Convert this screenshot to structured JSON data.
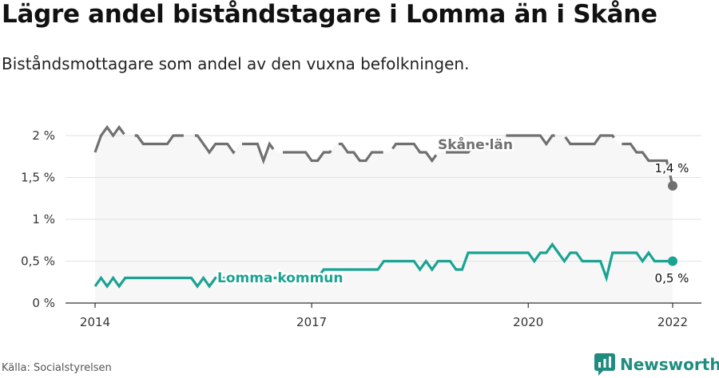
{
  "header": {
    "title": "Lägre andel biståndstagare i Lomma än i Skåne",
    "subtitle": "Biståndsmottagare som andel av den vuxna befolkningen."
  },
  "footer": {
    "source": "Källa: Socialstyrelsen",
    "brand": "Newsworthy"
  },
  "colors": {
    "skane": "#707070",
    "lomma": "#1aa392",
    "area": "#f7f7f7",
    "grid": "#e2e2e2",
    "axis": "#333333",
    "brand": "#1f8c80"
  },
  "chart_data": {
    "type": "line",
    "xlim": [
      2014,
      2022
    ],
    "ylim": [
      0,
      2
    ],
    "yticks": [
      {
        "value": 0,
        "label": "0 %"
      },
      {
        "value": 0.5,
        "label": "0,5 %"
      },
      {
        "value": 1,
        "label": "1 %"
      },
      {
        "value": 1.5,
        "label": "1,5 %"
      },
      {
        "value": 2,
        "label": "2 %"
      }
    ],
    "xticks": [
      {
        "value": 2014,
        "label": "2014"
      },
      {
        "value": 2017,
        "label": "2017"
      },
      {
        "value": 2020,
        "label": "2020"
      },
      {
        "value": 2022,
        "label": "2022"
      }
    ],
    "grid": true,
    "series": [
      {
        "name": "Skåne län",
        "color": "#707070",
        "end_label": "1,4 %",
        "x": [
          2014.0,
          2014.083,
          2014.167,
          2014.25,
          2014.333,
          2014.417,
          2014.5,
          2014.583,
          2014.667,
          2014.75,
          2014.833,
          2014.917,
          2015.0,
          2015.083,
          2015.167,
          2015.25,
          2015.333,
          2015.417,
          2015.5,
          2015.583,
          2015.667,
          2015.75,
          2015.833,
          2015.917,
          2016.0,
          2016.083,
          2016.167,
          2016.25,
          2016.333,
          2016.417,
          2016.5,
          2016.583,
          2016.667,
          2016.75,
          2016.833,
          2016.917,
          2017.0,
          2017.083,
          2017.167,
          2017.25,
          2017.333,
          2017.417,
          2017.5,
          2017.583,
          2017.667,
          2017.75,
          2017.833,
          2017.917,
          2018.0,
          2018.083,
          2018.167,
          2018.25,
          2018.333,
          2018.417,
          2018.5,
          2018.583,
          2018.667,
          2018.75,
          2018.833,
          2018.917,
          2019.0,
          2019.083,
          2019.167,
          2019.25,
          2019.333,
          2019.417,
          2019.5,
          2019.583,
          2019.667,
          2019.75,
          2019.833,
          2019.917,
          2020.0,
          2020.083,
          2020.167,
          2020.25,
          2020.333,
          2020.417,
          2020.5,
          2020.583,
          2020.667,
          2020.75,
          2020.833,
          2020.917,
          2021.0,
          2021.083,
          2021.167,
          2021.25,
          2021.333,
          2021.417,
          2021.5,
          2021.583,
          2021.667,
          2021.75,
          2021.833,
          2021.917,
          2022.0
        ],
        "values": [
          1.8,
          2.0,
          2.1,
          2.0,
          2.1,
          2.0,
          2.0,
          2.0,
          1.9,
          1.9,
          1.9,
          1.9,
          1.9,
          2.0,
          2.0,
          2.0,
          2.0,
          2.0,
          1.9,
          1.8,
          1.9,
          1.9,
          1.9,
          1.8,
          1.9,
          1.9,
          1.9,
          1.9,
          1.7,
          1.9,
          1.8,
          1.8,
          1.8,
          1.8,
          1.8,
          1.8,
          1.7,
          1.7,
          1.8,
          1.8,
          1.9,
          1.9,
          1.8,
          1.8,
          1.7,
          1.7,
          1.8,
          1.8,
          1.8,
          1.8,
          1.9,
          1.9,
          1.9,
          1.9,
          1.8,
          1.8,
          1.7,
          1.8,
          1.8,
          1.8,
          1.8,
          1.8,
          1.8,
          1.9,
          1.9,
          1.9,
          1.9,
          1.9,
          2.0,
          2.0,
          2.0,
          2.0,
          2.0,
          2.0,
          2.0,
          1.9,
          2.0,
          2.0,
          2.0,
          1.9,
          1.9,
          1.9,
          1.9,
          1.9,
          2.0,
          2.0,
          2.0,
          1.9,
          1.9,
          1.9,
          1.8,
          1.8,
          1.7,
          1.7,
          1.7,
          1.7,
          1.4
        ]
      },
      {
        "name": "Lomma kommun",
        "color": "#1aa392",
        "end_label": "0,5 %",
        "x": [
          2014.0,
          2014.083,
          2014.167,
          2014.25,
          2014.333,
          2014.417,
          2014.5,
          2014.583,
          2014.667,
          2014.75,
          2014.833,
          2014.917,
          2015.0,
          2015.083,
          2015.167,
          2015.25,
          2015.333,
          2015.417,
          2015.5,
          2015.583,
          2015.667,
          2015.75,
          2015.833,
          2015.917,
          2016.0,
          2016.083,
          2016.167,
          2016.25,
          2016.333,
          2016.417,
          2016.5,
          2016.583,
          2016.667,
          2016.75,
          2016.833,
          2016.917,
          2017.0,
          2017.083,
          2017.167,
          2017.25,
          2017.333,
          2017.417,
          2017.5,
          2017.583,
          2017.667,
          2017.75,
          2017.833,
          2017.917,
          2018.0,
          2018.083,
          2018.167,
          2018.25,
          2018.333,
          2018.417,
          2018.5,
          2018.583,
          2018.667,
          2018.75,
          2018.833,
          2018.917,
          2019.0,
          2019.083,
          2019.167,
          2019.25,
          2019.333,
          2019.417,
          2019.5,
          2019.583,
          2019.667,
          2019.75,
          2019.833,
          2019.917,
          2020.0,
          2020.083,
          2020.167,
          2020.25,
          2020.333,
          2020.417,
          2020.5,
          2020.583,
          2020.667,
          2020.75,
          2020.833,
          2020.917,
          2021.0,
          2021.083,
          2021.167,
          2021.25,
          2021.333,
          2021.417,
          2021.5,
          2021.583,
          2021.667,
          2021.75,
          2021.833,
          2021.917,
          2022.0
        ],
        "values": [
          0.2,
          0.3,
          0.2,
          0.3,
          0.2,
          0.3,
          0.3,
          0.3,
          0.3,
          0.3,
          0.3,
          0.3,
          0.3,
          0.3,
          0.3,
          0.3,
          0.3,
          0.2,
          0.3,
          0.2,
          0.3,
          0.3,
          0.3,
          0.3,
          0.3,
          0.3,
          0.3,
          0.3,
          0.3,
          0.3,
          0.3,
          0.3,
          0.3,
          0.3,
          0.3,
          0.3,
          0.3,
          0.3,
          0.4,
          0.4,
          0.4,
          0.4,
          0.4,
          0.4,
          0.4,
          0.4,
          0.4,
          0.4,
          0.5,
          0.5,
          0.5,
          0.5,
          0.5,
          0.5,
          0.4,
          0.5,
          0.4,
          0.5,
          0.5,
          0.5,
          0.4,
          0.4,
          0.6,
          0.6,
          0.6,
          0.6,
          0.6,
          0.6,
          0.6,
          0.6,
          0.6,
          0.6,
          0.6,
          0.5,
          0.6,
          0.6,
          0.7,
          0.6,
          0.5,
          0.6,
          0.6,
          0.5,
          0.5,
          0.5,
          0.5,
          0.3,
          0.6,
          0.6,
          0.6,
          0.6,
          0.6,
          0.5,
          0.6,
          0.5,
          0.5,
          0.5,
          0.5
        ]
      }
    ]
  }
}
